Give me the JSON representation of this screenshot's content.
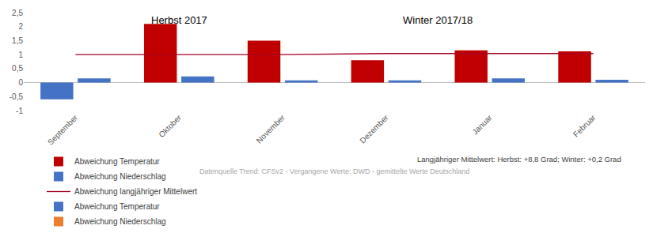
{
  "chart_data": {
    "type": "bar",
    "categories": [
      "September",
      "Oktober",
      "November",
      "Dezember",
      "Januar",
      "Februar"
    ],
    "series": [
      {
        "name": "Abweichung Temperatur",
        "color": "#c00000",
        "values": [
          null,
          2.1,
          1.5,
          0.8,
          1.15,
          1.12
        ]
      },
      {
        "name": "Abweichung Niederschlag",
        "color": "#4472c4",
        "values": [
          0.15,
          0.22,
          0.08,
          0.08,
          0.15,
          0.1
        ]
      },
      {
        "name": "Abweichung langjähriger Mittelwert",
        "type": "line",
        "color": "#a50021",
        "values": [
          1,
          1,
          1,
          1.04,
          1.04,
          1.04
        ]
      },
      {
        "name": "Abweichung Temperatur",
        "color": "#4472c4",
        "values": [
          -0.6,
          null,
          null,
          null,
          null,
          null
        ]
      },
      {
        "name": "Abweichung Niederschlag",
        "color": "#ed7d31",
        "values": [
          null,
          null,
          null,
          null,
          null,
          null
        ]
      }
    ],
    "ylim": [
      -1,
      2.5
    ],
    "yticks": [
      -1,
      {
        "value": -0.5,
        "label": "-0,5"
      },
      0,
      {
        "value": 0.5,
        "label": "0,5"
      },
      1,
      {
        "value": 1.5,
        "label": "1,5"
      },
      2,
      {
        "value": 2.5,
        "label": "2,5"
      }
    ],
    "grid": false,
    "legend": "bottom",
    "annotations": [
      "Herbst 2017",
      "Winter 2017/18"
    ],
    "note": "Langjähriger Mittelwert: Herbst: +8,8 Grad; Winter: +0,2 Grad",
    "source": "Datenquelle Trend: CFSv2 - Vergangene Werte: DWD - gemittelte Werte Deutschland"
  }
}
